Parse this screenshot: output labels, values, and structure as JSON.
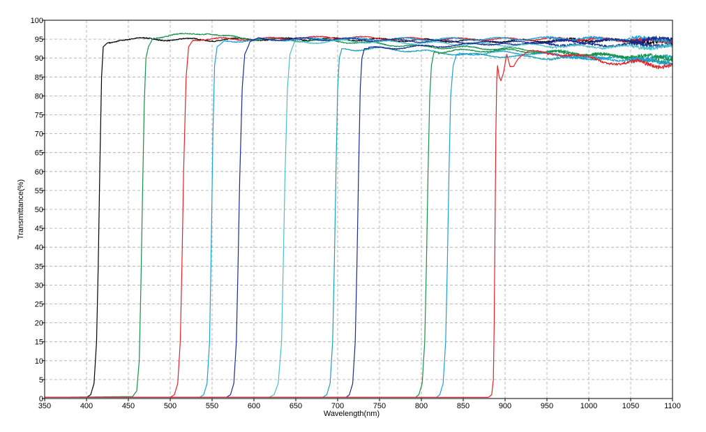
{
  "chart_data": {
    "type": "line",
    "xlabel": "Wavelength(nm)",
    "ylabel": "Transmittance(%)",
    "xlim": [
      350,
      1100
    ],
    "ylim": [
      0,
      100
    ],
    "xticks": [
      350,
      400,
      450,
      500,
      550,
      600,
      650,
      700,
      750,
      800,
      850,
      900,
      950,
      1000,
      1050,
      1100
    ],
    "yticks": [
      0,
      5,
      10,
      15,
      20,
      25,
      30,
      35,
      40,
      45,
      50,
      55,
      60,
      65,
      70,
      75,
      80,
      85,
      90,
      95,
      100
    ],
    "grid": true,
    "series": [
      {
        "color": "#000000",
        "edge": 415,
        "top": 94.8,
        "end": 94.0,
        "width": 7,
        "points": [
          [
            350,
            0.3
          ],
          [
            400,
            0.3
          ],
          [
            405,
            1
          ],
          [
            409,
            4
          ],
          [
            412,
            15
          ],
          [
            414,
            35
          ],
          [
            416,
            62
          ],
          [
            418,
            85
          ],
          [
            420,
            93
          ],
          [
            425,
            94
          ],
          [
            430,
            94.3
          ],
          [
            440,
            95
          ],
          [
            480,
            95
          ],
          [
            550,
            94.8
          ],
          [
            600,
            95
          ],
          [
            650,
            95
          ],
          [
            700,
            95
          ],
          [
            800,
            94.7
          ],
          [
            900,
            94.5
          ],
          [
            1000,
            94.8
          ],
          [
            1100,
            94.0
          ]
        ]
      },
      {
        "color": "#16904a",
        "edge": 467,
        "top": 96.5,
        "end": 88.5,
        "width": 7,
        "points": [
          [
            350,
            0.3
          ],
          [
            455,
            0.5
          ],
          [
            460,
            2
          ],
          [
            463,
            10
          ],
          [
            465,
            30
          ],
          [
            467,
            55
          ],
          [
            469,
            78
          ],
          [
            471,
            90
          ],
          [
            474,
            93
          ],
          [
            480,
            95.5
          ],
          [
            500,
            96
          ],
          [
            520,
            96.2
          ],
          [
            545,
            96.7
          ],
          [
            550,
            96.5
          ],
          [
            560,
            95.8
          ],
          [
            575,
            95.5
          ],
          [
            600,
            95
          ],
          [
            700,
            94.5
          ],
          [
            800,
            93
          ],
          [
            900,
            92.5
          ],
          [
            1000,
            91
          ],
          [
            1050,
            90
          ],
          [
            1100,
            88.5
          ]
        ]
      },
      {
        "color": "#e0232a",
        "edge": 515,
        "top": 95.0,
        "end": 94.5,
        "width": 7,
        "points": [
          [
            350,
            0.3
          ],
          [
            500,
            0.3
          ],
          [
            505,
            1
          ],
          [
            509,
            4
          ],
          [
            512,
            15
          ],
          [
            514,
            35
          ],
          [
            516,
            60
          ],
          [
            519,
            85
          ],
          [
            522,
            93
          ],
          [
            528,
            95
          ],
          [
            600,
            95
          ],
          [
            700,
            95.5
          ],
          [
            800,
            95
          ],
          [
            900,
            95
          ],
          [
            1000,
            95
          ],
          [
            1100,
            94.5
          ]
        ]
      },
      {
        "color": "#1e9fd8",
        "edge": 550,
        "top": 94.8,
        "end": 95.0,
        "width": 7,
        "points": [
          [
            350,
            0.3
          ],
          [
            535,
            0.3
          ],
          [
            540,
            1
          ],
          [
            544,
            4
          ],
          [
            547,
            15
          ],
          [
            549,
            40
          ],
          [
            551,
            70
          ],
          [
            553,
            88
          ],
          [
            556,
            93
          ],
          [
            565,
            94.5
          ],
          [
            650,
            95
          ],
          [
            750,
            95
          ],
          [
            850,
            95
          ],
          [
            950,
            95.2
          ],
          [
            1100,
            95
          ]
        ]
      },
      {
        "color": "#1b2a8f",
        "edge": 582,
        "top": 95.0,
        "end": 93.5,
        "width": 7,
        "points": [
          [
            350,
            0.3
          ],
          [
            567,
            0.3
          ],
          [
            572,
            1
          ],
          [
            576,
            4
          ],
          [
            579,
            15
          ],
          [
            581,
            35
          ],
          [
            583,
            58
          ],
          [
            586,
            82
          ],
          [
            589,
            91
          ],
          [
            595,
            94
          ],
          [
            605,
            95
          ],
          [
            700,
            95
          ],
          [
            800,
            94.5
          ],
          [
            900,
            94
          ],
          [
            1000,
            93.5
          ],
          [
            1100,
            93.5
          ]
        ]
      },
      {
        "color": "#4bbfca",
        "edge": 636,
        "top": 94.5,
        "end": 93.0,
        "width": 7,
        "points": [
          [
            350,
            0.3
          ],
          [
            618,
            0.3
          ],
          [
            624,
            1
          ],
          [
            629,
            4
          ],
          [
            633,
            15
          ],
          [
            635,
            35
          ],
          [
            637,
            58
          ],
          [
            640,
            82
          ],
          [
            643,
            91
          ],
          [
            648,
            94
          ],
          [
            700,
            94.5
          ],
          [
            800,
            94
          ],
          [
            900,
            93.5
          ],
          [
            1000,
            93
          ],
          [
            1100,
            93
          ]
        ]
      },
      {
        "color": "#1aa0b8",
        "edge": 697,
        "top": 92.5,
        "end": 90.0,
        "width": 7,
        "points": [
          [
            350,
            0.3
          ],
          [
            682,
            0.3
          ],
          [
            687,
            1
          ],
          [
            691,
            4
          ],
          [
            694,
            15
          ],
          [
            696,
            35
          ],
          [
            698,
            60
          ],
          [
            700,
            82
          ],
          [
            702,
            90
          ],
          [
            705,
            92.5
          ],
          [
            720,
            92.3
          ],
          [
            750,
            92.5
          ],
          [
            800,
            91.8
          ],
          [
            850,
            91
          ],
          [
            900,
            90.5
          ],
          [
            950,
            90
          ],
          [
            1000,
            90
          ],
          [
            1100,
            90
          ]
        ]
      },
      {
        "color": "#1b2a8f",
        "edge": 725,
        "top": 92.5,
        "end": 95.0,
        "width": 7,
        "points": [
          [
            350,
            0.3
          ],
          [
            710,
            0.3
          ],
          [
            714,
            1
          ],
          [
            718,
            4
          ],
          [
            721,
            15
          ],
          [
            723,
            35
          ],
          [
            725,
            60
          ],
          [
            727,
            82
          ],
          [
            729,
            90
          ],
          [
            732,
            92.5
          ],
          [
            800,
            93
          ],
          [
            900,
            94
          ],
          [
            1000,
            94.5
          ],
          [
            1100,
            95
          ]
        ]
      },
      {
        "color": "#16904a",
        "edge": 808,
        "top": 92.0,
        "end": 90.0,
        "width": 7,
        "points": [
          [
            350,
            0.3
          ],
          [
            793,
            0.3
          ],
          [
            797,
            1
          ],
          [
            801,
            4
          ],
          [
            804,
            15
          ],
          [
            806,
            35
          ],
          [
            808,
            60
          ],
          [
            810,
            80
          ],
          [
            812,
            88
          ],
          [
            815,
            91.5
          ],
          [
            850,
            92
          ],
          [
            900,
            92
          ],
          [
            950,
            91.5
          ],
          [
            1000,
            91
          ],
          [
            1050,
            90.5
          ],
          [
            1100,
            90
          ]
        ]
      },
      {
        "color": "#1e9fd8",
        "edge": 833,
        "top": 91.5,
        "end": 89.0,
        "width": 7,
        "points": [
          [
            350,
            0.3
          ],
          [
            818,
            0.3
          ],
          [
            822,
            1
          ],
          [
            826,
            4
          ],
          [
            829,
            15
          ],
          [
            831,
            35
          ],
          [
            833,
            60
          ],
          [
            835,
            80
          ],
          [
            838,
            88
          ],
          [
            842,
            91
          ],
          [
            900,
            91.5
          ],
          [
            950,
            91
          ],
          [
            1000,
            90
          ],
          [
            1050,
            89.5
          ],
          [
            1100,
            89
          ]
        ]
      },
      {
        "color": "#e0232a",
        "edge": 889,
        "top": 90.0,
        "end": 88.0,
        "width": 0,
        "points": [
          [
            350,
            0.3
          ],
          [
            880,
            0.3
          ],
          [
            884,
            1
          ],
          [
            886,
            5
          ],
          [
            887,
            20
          ],
          [
            888,
            45
          ],
          [
            889,
            70
          ],
          [
            890,
            84
          ],
          [
            891,
            88
          ],
          [
            893,
            85
          ],
          [
            895,
            84
          ],
          [
            898,
            86
          ],
          [
            902,
            91
          ],
          [
            906,
            88
          ],
          [
            910,
            88
          ],
          [
            915,
            90
          ],
          [
            920,
            91
          ],
          [
            930,
            92
          ],
          [
            950,
            91
          ],
          [
            980,
            91
          ],
          [
            1000,
            90
          ],
          [
            1020,
            89
          ],
          [
            1040,
            88.5
          ],
          [
            1060,
            89
          ],
          [
            1080,
            88
          ],
          [
            1100,
            88
          ]
        ]
      }
    ]
  }
}
